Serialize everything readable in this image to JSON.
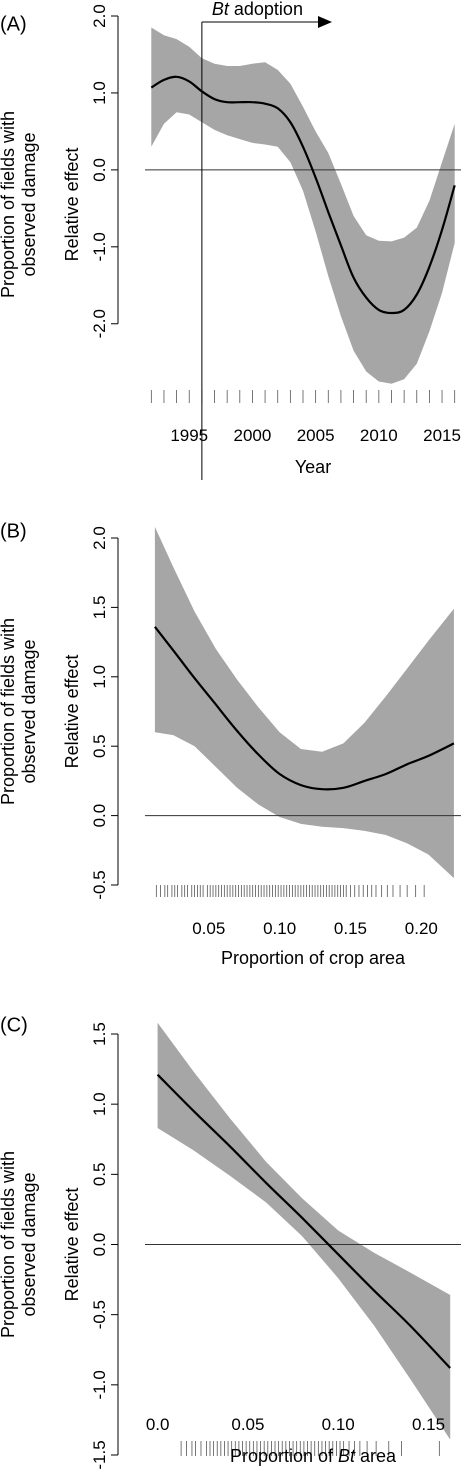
{
  "chart_data": [
    {
      "type": "line",
      "panel_label": "(A)",
      "xlabel": "Year",
      "ylabel": "Relative effect",
      "outer_ylabel": [
        "Proportion of fields with",
        "observed damage"
      ],
      "xlim": [
        1991.5,
        2016.5
      ],
      "ylim": [
        -2.9,
        2.0
      ],
      "xticks": [
        1995,
        2000,
        2005,
        2010,
        2015
      ],
      "xtick_labels": [
        "1995",
        "2000",
        "2005",
        "2010",
        "2015"
      ],
      "yticks": [
        -2.0,
        -1.0,
        0.0,
        1.0,
        2.0
      ],
      "ytick_labels": [
        "-2.0",
        "-1.0",
        "0.0",
        "1.0",
        "2.0"
      ],
      "annotation": {
        "italic": "Bt",
        "text": " adoption",
        "x": 1996
      },
      "x": [
        1992,
        1993,
        1994,
        1995,
        1996,
        1997,
        1998,
        1999,
        2000,
        2001,
        2002,
        2003,
        2004,
        2005,
        2006,
        2007,
        2008,
        2009,
        2010,
        2011,
        2012,
        2013,
        2014,
        2015,
        2016
      ],
      "series": [
        {
          "name": "fit",
          "values": [
            1.07,
            1.17,
            1.21,
            1.15,
            1.02,
            0.92,
            0.88,
            0.88,
            0.88,
            0.86,
            0.8,
            0.62,
            0.3,
            -0.1,
            -0.55,
            -0.98,
            -1.4,
            -1.66,
            -1.82,
            -1.86,
            -1.82,
            -1.62,
            -1.26,
            -0.78,
            -0.2
          ]
        },
        {
          "name": "lower",
          "values": [
            0.3,
            0.6,
            0.75,
            0.72,
            0.62,
            0.52,
            0.45,
            0.4,
            0.35,
            0.33,
            0.3,
            0.1,
            -0.27,
            -0.8,
            -1.38,
            -1.9,
            -2.35,
            -2.62,
            -2.75,
            -2.78,
            -2.72,
            -2.52,
            -2.1,
            -1.6,
            -0.95
          ]
        },
        {
          "name": "upper",
          "values": [
            1.85,
            1.75,
            1.7,
            1.6,
            1.45,
            1.38,
            1.35,
            1.35,
            1.38,
            1.4,
            1.3,
            1.12,
            0.82,
            0.5,
            0.22,
            -0.18,
            -0.6,
            -0.85,
            -0.92,
            -0.93,
            -0.88,
            -0.75,
            -0.4,
            0.1,
            0.6
          ]
        }
      ],
      "rug": [
        1992,
        1993,
        1994,
        1995,
        1996,
        1997,
        1998,
        1999,
        2000,
        2001,
        2002,
        2003,
        2004,
        2005,
        2006,
        2007,
        2008,
        2009,
        2010,
        2011,
        2012,
        2013,
        2014,
        2015,
        2016
      ]
    },
    {
      "type": "line",
      "panel_label": "(B)",
      "xlabel": "Proportion of crop area",
      "ylabel": "Relative effect",
      "outer_ylabel": [
        "Proportion of fields with",
        "observed damage"
      ],
      "xlim": [
        0.005,
        0.228
      ],
      "ylim": [
        -0.5,
        2.0
      ],
      "xticks": [
        0.05,
        0.1,
        0.15,
        0.2
      ],
      "xtick_labels": [
        "0.05",
        "0.10",
        "0.15",
        "0.20"
      ],
      "yticks": [
        -0.5,
        0.0,
        0.5,
        1.0,
        1.5,
        2.0
      ],
      "ytick_labels": [
        "-0.5",
        "0.0",
        "0.5",
        "1.0",
        "1.5",
        "2.0"
      ],
      "x": [
        0.012,
        0.025,
        0.04,
        0.055,
        0.07,
        0.085,
        0.1,
        0.115,
        0.13,
        0.145,
        0.16,
        0.175,
        0.19,
        0.205,
        0.223
      ],
      "series": [
        {
          "name": "fit",
          "values": [
            1.36,
            1.19,
            0.99,
            0.8,
            0.61,
            0.44,
            0.3,
            0.22,
            0.19,
            0.2,
            0.25,
            0.3,
            0.37,
            0.43,
            0.52
          ]
        },
        {
          "name": "lower",
          "values": [
            0.6,
            0.58,
            0.5,
            0.35,
            0.2,
            0.08,
            -0.01,
            -0.06,
            -0.08,
            -0.09,
            -0.11,
            -0.14,
            -0.2,
            -0.28,
            -0.45
          ]
        },
        {
          "name": "upper",
          "values": [
            2.08,
            1.79,
            1.47,
            1.2,
            0.98,
            0.78,
            0.6,
            0.48,
            0.46,
            0.52,
            0.67,
            0.86,
            1.06,
            1.26,
            1.49
          ]
        }
      ],
      "rug": [
        0.013,
        0.016,
        0.019,
        0.021,
        0.024,
        0.026,
        0.028,
        0.031,
        0.033,
        0.035,
        0.038,
        0.04,
        0.042,
        0.044,
        0.046,
        0.049,
        0.051,
        0.053,
        0.055,
        0.057,
        0.059,
        0.061,
        0.063,
        0.065,
        0.067,
        0.069,
        0.071,
        0.073,
        0.075,
        0.077,
        0.079,
        0.081,
        0.083,
        0.085,
        0.087,
        0.089,
        0.091,
        0.093,
        0.095,
        0.097,
        0.099,
        0.101,
        0.103,
        0.105,
        0.107,
        0.109,
        0.111,
        0.113,
        0.115,
        0.117,
        0.119,
        0.121,
        0.123,
        0.125,
        0.127,
        0.129,
        0.131,
        0.133,
        0.135,
        0.137,
        0.139,
        0.141,
        0.143,
        0.145,
        0.147,
        0.15,
        0.153,
        0.156,
        0.159,
        0.162,
        0.165,
        0.168,
        0.172,
        0.176,
        0.18,
        0.185,
        0.19,
        0.196,
        0.202
      ]
    },
    {
      "type": "line",
      "panel_label": "(C)",
      "xlabel": "Proportion of Bt area",
      "xlabel_parts": {
        "before": "Proportion of ",
        "italic": "Bt",
        "after": " area"
      },
      "ylabel": "Relative effect",
      "outer_ylabel": [
        "Proportion of fields with",
        "observed damage"
      ],
      "xlim": [
        -0.007,
        0.168
      ],
      "ylim": [
        -1.5,
        1.5
      ],
      "xticks": [
        0.0,
        0.05,
        0.1,
        0.15
      ],
      "xtick_labels": [
        "0.0",
        "0.05",
        "0.10",
        "0.15"
      ],
      "yticks": [
        -1.5,
        -1.0,
        -0.5,
        0.0,
        0.5,
        1.0,
        1.5
      ],
      "ytick_labels": [
        "-1.5",
        "-1.0",
        "-0.5",
        "0.0",
        "0.5",
        "1.0",
        "1.5"
      ],
      "x": [
        0.0,
        0.02,
        0.04,
        0.06,
        0.08,
        0.1,
        0.12,
        0.14,
        0.162
      ],
      "series": [
        {
          "name": "fit",
          "values": [
            1.21,
            0.95,
            0.7,
            0.44,
            0.19,
            -0.07,
            -0.33,
            -0.58,
            -0.88
          ]
        },
        {
          "name": "lower",
          "values": [
            0.83,
            0.67,
            0.49,
            0.3,
            0.06,
            -0.24,
            -0.58,
            -0.96,
            -1.39
          ]
        },
        {
          "name": "upper",
          "values": [
            1.58,
            1.23,
            0.9,
            0.59,
            0.33,
            0.1,
            -0.06,
            -0.2,
            -0.36
          ]
        }
      ],
      "rug": [
        0.013,
        0.016,
        0.019,
        0.021,
        0.024,
        0.027,
        0.029,
        0.031,
        0.033,
        0.035,
        0.037,
        0.039,
        0.041,
        0.043,
        0.045,
        0.047,
        0.049,
        0.051,
        0.053,
        0.055,
        0.057,
        0.059,
        0.061,
        0.063,
        0.065,
        0.067,
        0.069,
        0.071,
        0.073,
        0.075,
        0.077,
        0.079,
        0.081,
        0.083,
        0.085,
        0.087,
        0.089,
        0.091,
        0.093,
        0.095,
        0.097,
        0.099,
        0.101,
        0.103,
        0.106,
        0.109,
        0.112,
        0.116,
        0.121,
        0.128,
        0.135,
        0.156
      ]
    }
  ]
}
